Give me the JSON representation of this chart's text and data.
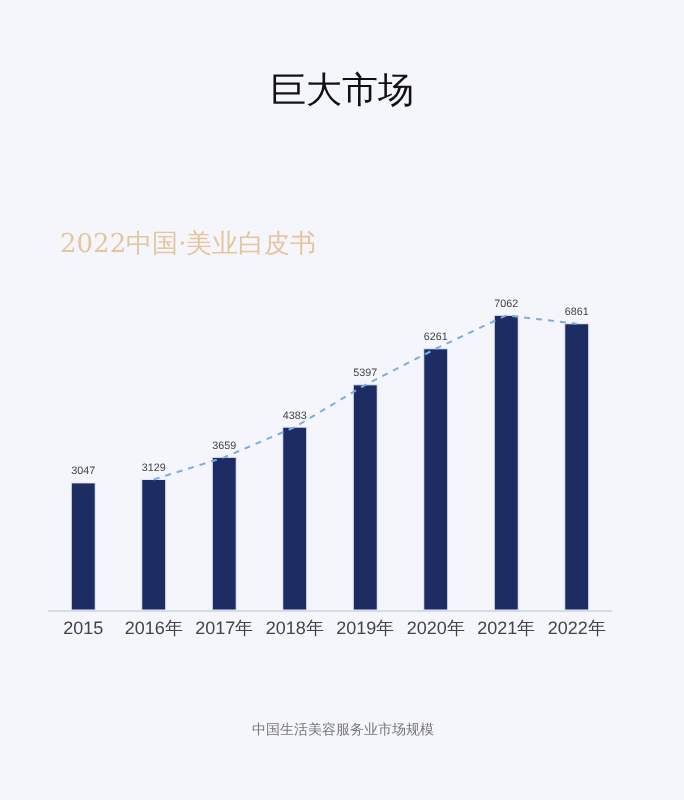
{
  "chart_data": {
    "type": "bar",
    "title": "巨大市场",
    "subtitle": "2022中国·美业白皮书",
    "categories": [
      "2015",
      "2016年",
      "2017年",
      "2018年",
      "2019年",
      "2020年",
      "2021年",
      "2022年"
    ],
    "series": [
      {
        "color": "#1d2d64",
        "values": [
          3047,
          3129,
          3659,
          4383,
          5397,
          6261,
          7062,
          6861
        ],
        "value_labels": [
          "3047",
          "3129",
          "3659",
          "4383",
          "5397",
          "6261",
          "7062",
          "6861"
        ]
      },
      {
        "type": "line",
        "color": "#7aaee0",
        "line_style": "dotted",
        "marker": "none",
        "values": [
          null,
          3129,
          3659,
          4383,
          5397,
          6261,
          7062,
          6861
        ]
      }
    ],
    "grid": false,
    "annotations": [
      "中国生活美容服务业市场规模"
    ]
  }
}
